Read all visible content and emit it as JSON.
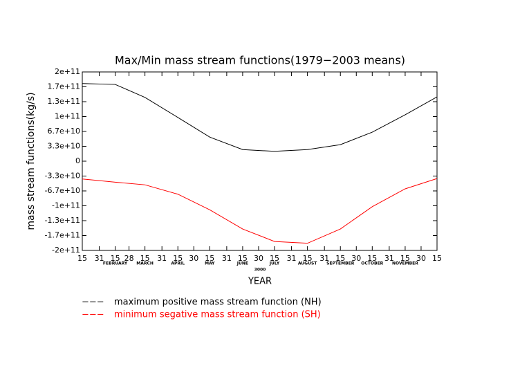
{
  "chart_data": {
    "type": "line",
    "title": "Max/Min mass stream functions(1979−2003 means)",
    "ylabel": "mass stream functions(kg/s)",
    "xlabel": "YEAR",
    "year_label": "3000",
    "x": [
      0,
      31,
      59,
      90,
      120,
      151,
      181,
      212,
      243,
      273,
      304,
      334
    ],
    "xlim": [
      0,
      334
    ],
    "xticks": [
      {
        "value": 0,
        "label": "15"
      },
      {
        "value": 16,
        "label": "31"
      },
      {
        "value": 31,
        "label": "15"
      },
      {
        "value": 44,
        "label": "28"
      },
      {
        "value": 59,
        "label": "15"
      },
      {
        "value": 75,
        "label": "31"
      },
      {
        "value": 90,
        "label": "15"
      },
      {
        "value": 105,
        "label": "30"
      },
      {
        "value": 120,
        "label": "15"
      },
      {
        "value": 136,
        "label": "31"
      },
      {
        "value": 151,
        "label": "15"
      },
      {
        "value": 166,
        "label": "30"
      },
      {
        "value": 181,
        "label": "15"
      },
      {
        "value": 197,
        "label": "31"
      },
      {
        "value": 212,
        "label": "15"
      },
      {
        "value": 228,
        "label": "31"
      },
      {
        "value": 243,
        "label": "15"
      },
      {
        "value": 258,
        "label": "30"
      },
      {
        "value": 273,
        "label": "15"
      },
      {
        "value": 289,
        "label": "31"
      },
      {
        "value": 304,
        "label": "15"
      },
      {
        "value": 319,
        "label": "30"
      },
      {
        "value": 334,
        "label": "15"
      }
    ],
    "month_labels": [
      {
        "value": 31,
        "label": "FEBRUARY"
      },
      {
        "value": 59,
        "label": "MARCH"
      },
      {
        "value": 90,
        "label": "APRIL"
      },
      {
        "value": 120,
        "label": "MAY"
      },
      {
        "value": 151,
        "label": "JUNE"
      },
      {
        "value": 181,
        "label": "JULY"
      },
      {
        "value": 212,
        "label": "AUGUST"
      },
      {
        "value": 243,
        "label": "SEPTEMBER"
      },
      {
        "value": 273,
        "label": "OCTOBER"
      },
      {
        "value": 304,
        "label": "NOVEMBER"
      }
    ],
    "ylim": [
      -200000000000,
      200000000000
    ],
    "yticks": [
      {
        "value": 200000000000,
        "label": "2e+11"
      },
      {
        "value": 166666666667,
        "label": "1.7e+11"
      },
      {
        "value": 133333333333,
        "label": "1.3e+11"
      },
      {
        "value": 100000000000,
        "label": "1e+11"
      },
      {
        "value": 66666666667,
        "label": "6.7e+10"
      },
      {
        "value": 33333333333,
        "label": "3.3e+10"
      },
      0,
      {
        "value": -33333333333,
        "label": "-3.3e+10"
      },
      {
        "value": -66666666667,
        "label": "-6.7e+10"
      },
      {
        "value": -100000000000,
        "label": "-1e+11"
      },
      {
        "value": -133333333333,
        "label": "-1.3e+11"
      },
      {
        "value": -166666666667,
        "label": "-1.7e+11"
      },
      {
        "value": -200000000000,
        "label": "-2e+11"
      }
    ],
    "legend_marker": "−−−",
    "series": [
      {
        "name": "maximum positive mass stream function (NH)",
        "color": "#000000",
        "values": [
          174000000000,
          172000000000,
          143000000000,
          98000000000,
          54000000000,
          26000000000,
          22000000000,
          26000000000,
          37000000000,
          65000000000,
          104000000000,
          144000000000
        ]
      },
      {
        "name": "minimum segative mass stream function (SH)",
        "color": "#ff0000",
        "values": [
          -40000000000,
          -47000000000,
          -53000000000,
          -74000000000,
          -109000000000,
          -152000000000,
          -180000000000,
          -184000000000,
          -152000000000,
          -102000000000,
          -62000000000,
          -39000000000
        ]
      }
    ]
  }
}
